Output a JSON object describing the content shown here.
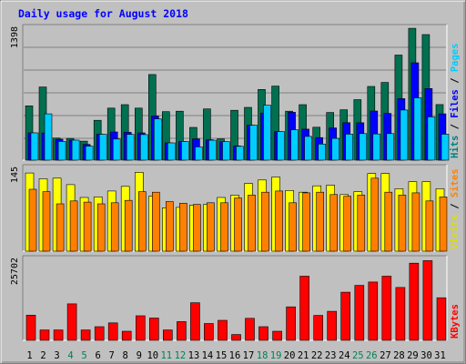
{
  "chart_data": {
    "type": "bar",
    "title": "Daily usage for August 2018",
    "days": [
      "1",
      "2",
      "3",
      "4",
      "5",
      "6",
      "7",
      "8",
      "9",
      "10",
      "11",
      "12",
      "13",
      "14",
      "15",
      "16",
      "17",
      "18",
      "19",
      "20",
      "21",
      "22",
      "23",
      "24",
      "25",
      "26",
      "27",
      "28",
      "29",
      "30",
      "31"
    ],
    "weekend_days": [
      "4",
      "5",
      "11",
      "12",
      "18",
      "19",
      "25",
      "26"
    ],
    "panels": [
      {
        "id": "top",
        "ymax": 1398,
        "ymax_label": "1398",
        "side_labels": [
          {
            "text": "Hits",
            "color": "#008080"
          },
          {
            "text": " / ",
            "color": "#000000"
          },
          {
            "text": "Files",
            "color": "#0000ff"
          },
          {
            "text": " / ",
            "color": "#000000"
          },
          {
            "text": "Pages",
            "color": "#00ccff"
          }
        ],
        "series": [
          {
            "name": "Hits",
            "color": "#007050",
            "values": [
              568,
              765,
              231,
              227,
              199,
              417,
              544,
              580,
              544,
              895,
              507,
              512,
              342,
              535,
              223,
              521,
              552,
              739,
              774,
              512,
              580,
              344,
              498,
              527,
              632,
              770,
              812,
              1098,
              1378,
              1312,
              581
            ]
          },
          {
            "name": "Files",
            "color": "#0000ff",
            "values": [
              285,
              284,
              219,
              209,
              165,
              270,
              295,
              291,
              285,
              461,
              181,
              195,
              223,
              213,
              193,
              148,
              365,
              493,
              299,
              500,
              324,
              236,
              337,
              392,
              391,
              514,
              488,
              643,
              1018,
              748,
              484
            ]
          },
          {
            "name": "Pages",
            "color": "#00ccff",
            "values": [
              285,
              484,
              195,
              209,
              146,
              270,
              221,
              269,
              267,
              432,
              181,
              195,
              139,
              208,
              193,
              145,
              365,
              574,
              299,
              318,
              248,
              168,
              227,
              272,
              278,
              274,
              278,
              524,
              651,
              453,
              271
            ]
          }
        ]
      },
      {
        "id": "middle",
        "ymax": 145,
        "ymax_label": "145",
        "side_labels": [
          {
            "text": "Visits",
            "color": "#dddd00"
          },
          {
            "text": " / ",
            "color": "#000000"
          },
          {
            "text": "Sites",
            "color": "#ff8000"
          }
        ],
        "series": [
          {
            "name": "Visits",
            "color": "#ffff00",
            "values": [
              134,
              124,
              125,
              114,
              92,
              93,
              103,
              111,
              135,
              94,
              74,
              75,
              79,
              80,
              92,
              96,
              116,
              122,
              127,
              104,
              101,
              112,
              113,
              97,
              102,
              133,
              133,
              107,
              119,
              119,
              107
            ]
          },
          {
            "name": "Sites",
            "color": "#ff8000",
            "values": [
              106,
              102,
              81,
              86,
              84,
              81,
              83,
              87,
              102,
              101,
              85,
              82,
              80,
              83,
              83,
              91,
              96,
              101,
              103,
              83,
              100,
              101,
              97,
              94,
              96,
              125,
              101,
              96,
              100,
              86,
              93
            ]
          }
        ]
      },
      {
        "id": "bottom",
        "ymax": 25702,
        "ymax_label": "25702",
        "side_labels": [
          {
            "text": "KBytes",
            "color": "#ff0000"
          }
        ],
        "series": [
          {
            "name": "KBytes",
            "color": "#ff0000",
            "values": [
              7826,
              3226,
              3226,
              11330,
              3226,
              4226,
              5436,
              2826,
              7626,
              6926,
              3226,
              5826,
              11670,
              5226,
              6226,
              1800,
              6826,
              4226,
              2826,
              10400,
              19900,
              7726,
              9016,
              14950,
              17050,
              18100,
              19900,
              16400,
              23960,
              24736,
              13230
            ]
          }
        ]
      }
    ]
  }
}
